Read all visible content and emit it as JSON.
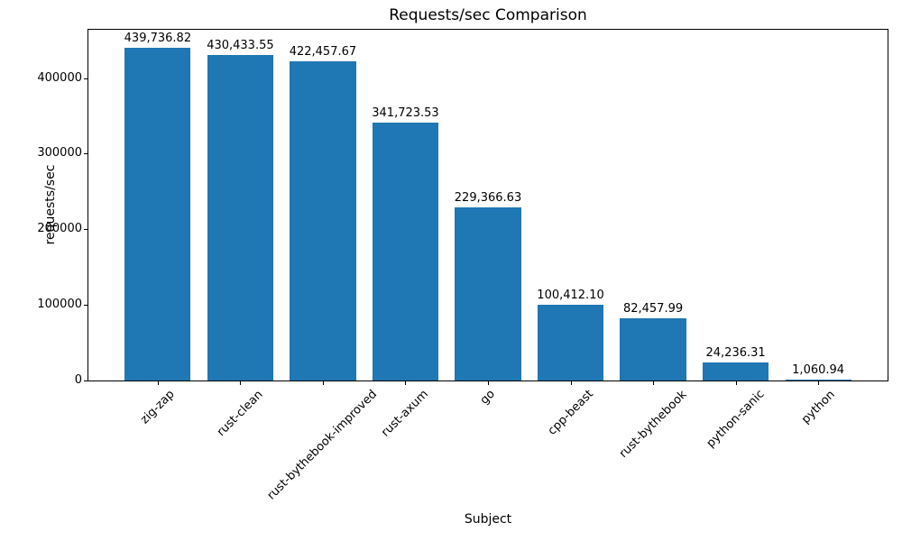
{
  "chart_data": {
    "type": "bar",
    "title": "Requests/sec Comparison",
    "xlabel": "Subject",
    "ylabel": "requests/sec",
    "categories": [
      "zig-zap",
      "rust-clean",
      "rust-bythebook-improved",
      "rust-axum",
      "go",
      "cpp-beast",
      "rust-bythebook",
      "python-sanic",
      "python"
    ],
    "values": [
      439736.82,
      430433.55,
      422457.67,
      341723.53,
      229366.63,
      100412.1,
      82457.99,
      24236.31,
      1060.94
    ],
    "value_labels": [
      "439,736.82",
      "430,433.55",
      "422,457.67",
      "341,723.53",
      "229,366.63",
      "100,412.10",
      "82,457.99",
      "24,236.31",
      "1,060.94"
    ],
    "yticks": [
      0,
      100000,
      200000,
      300000,
      400000
    ],
    "ytick_labels": [
      "0",
      "100000",
      "200000",
      "300000",
      "400000"
    ],
    "ylim": [
      0,
      464000
    ],
    "bar_color": "#1f77b4",
    "text_color": "#000000",
    "background_color": "#ffffff",
    "grid": false,
    "legend": "none",
    "xtick_rotation_deg": 45
  }
}
